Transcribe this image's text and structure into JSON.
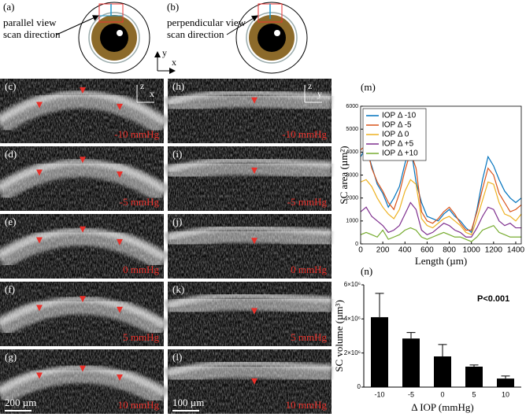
{
  "diagrams": [
    {
      "label": "(a)",
      "caption": [
        "parallel view",
        "scan direction"
      ]
    },
    {
      "label": "(b)",
      "caption": [
        "perpendicular view",
        "scan direction"
      ]
    }
  ],
  "axes_glyph": {
    "vertical": "y",
    "horizontal": "x"
  },
  "orientation": [
    {
      "vertical": "z",
      "horizontal": "x"
    },
    {
      "vertical": "z",
      "horizontal": "y"
    }
  ],
  "oct_panels": [
    {
      "label": "(c)",
      "pressure": "-10 mmHg"
    },
    {
      "label": "(d)",
      "pressure": "-5 mmHg"
    },
    {
      "label": "(e)",
      "pressure": "0 mmHg"
    },
    {
      "label": "(f)",
      "pressure": "5 mmHg"
    },
    {
      "label": "(g)",
      "pressure": "10 mmHg"
    },
    {
      "label": "(h)",
      "pressure": "-10 mmHg"
    },
    {
      "label": "(i)",
      "pressure": "-5 mmHg"
    },
    {
      "label": "(j)",
      "pressure": "0 mmHg"
    },
    {
      "label": "(k)",
      "pressure": "5 mmHg"
    },
    {
      "label": "(l)",
      "pressure": "10 mmHg"
    }
  ],
  "scale_bars": [
    "200 µm",
    "100 µm"
  ],
  "chart_data": [
    {
      "type": "line",
      "panel_label": "(m)",
      "x_label": "Length (µm)",
      "y_label": "SC area (µm²)",
      "x": [
        0,
        50,
        100,
        150,
        200,
        250,
        300,
        350,
        400,
        450,
        500,
        550,
        600,
        650,
        700,
        750,
        800,
        850,
        900,
        950,
        1000,
        1050,
        1100,
        1150,
        1200,
        1250,
        1300,
        1350,
        1400,
        1450
      ],
      "series": [
        {
          "name": "IOP Δ -10",
          "color": "#0072bd",
          "values": [
            3800,
            4200,
            3400,
            2600,
            2200,
            1600,
            2000,
            2500,
            3500,
            4300,
            2700,
            1800,
            1200,
            1100,
            1000,
            1300,
            1500,
            1200,
            1000,
            700,
            500,
            1500,
            2800,
            3800,
            3400,
            2800,
            2300,
            2000,
            1800,
            2000
          ]
        },
        {
          "name": "IOP Δ -5",
          "color": "#d95319",
          "values": [
            4100,
            4300,
            3300,
            2700,
            2300,
            1800,
            1500,
            2200,
            3200,
            4000,
            3300,
            1400,
            1000,
            900,
            1100,
            1400,
            1600,
            1300,
            900,
            600,
            600,
            1400,
            2400,
            3300,
            3000,
            2200,
            1800,
            1400,
            1500,
            1700
          ]
        },
        {
          "name": "IOP Δ 0",
          "color": "#edb120",
          "values": [
            2700,
            2800,
            2500,
            2000,
            1600,
            1300,
            1100,
            1500,
            2300,
            2800,
            2600,
            1100,
            800,
            700,
            900,
            1100,
            1200,
            1000,
            800,
            500,
            400,
            1100,
            1900,
            2700,
            2600,
            1800,
            1300,
            1200,
            1000,
            1300
          ]
        },
        {
          "name": "IOP Δ +5",
          "color": "#7e2f8e",
          "values": [
            1400,
            1600,
            1200,
            1000,
            800,
            500,
            600,
            800,
            1300,
            1800,
            1500,
            600,
            400,
            500,
            700,
            900,
            800,
            600,
            500,
            300,
            300,
            700,
            1200,
            1600,
            1500,
            1000,
            800,
            900,
            700,
            700
          ]
        },
        {
          "name": "IOP Δ +10",
          "color": "#77ac30",
          "values": [
            400,
            500,
            400,
            300,
            600,
            200,
            300,
            400,
            600,
            700,
            600,
            300,
            200,
            300,
            400,
            500,
            400,
            300,
            300,
            200,
            100,
            300,
            600,
            700,
            800,
            500,
            400,
            300,
            300,
            300
          ]
        }
      ],
      "xlim": [
        0,
        1450
      ],
      "ylim": [
        0,
        6000
      ],
      "xticks": [
        0,
        200,
        400,
        600,
        800,
        1000,
        1200,
        1400
      ],
      "yticks": [
        0,
        1000,
        2000,
        3000,
        4000,
        5000,
        6000
      ],
      "legend": "upper left"
    },
    {
      "type": "bar",
      "panel_label": "(n)",
      "x_label": "Δ IOP (mmHg)",
      "y_label": "SC volume (µm³)",
      "annotation": "P<0.001",
      "categories": [
        "-10",
        "-5",
        "0",
        "5",
        "10"
      ],
      "values": [
        4100000,
        2850000,
        1800000,
        1200000,
        500000
      ],
      "errors": [
        1400000,
        350000,
        700000,
        100000,
        150000
      ],
      "color": "#000000",
      "ylim": [
        0,
        6000000
      ],
      "yticks": [
        0,
        {
          "value": 2000000,
          "label": "2×10⁶"
        },
        {
          "value": 4000000,
          "label": "4×10⁶"
        },
        {
          "value": 6000000,
          "label": "6×10⁶"
        }
      ]
    }
  ]
}
